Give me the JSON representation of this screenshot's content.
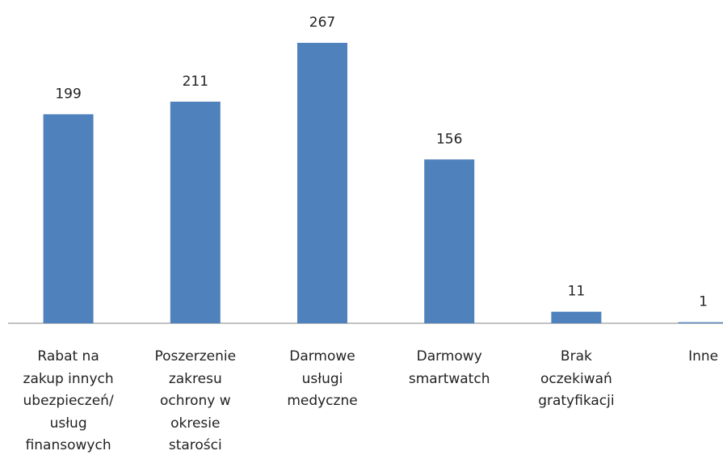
{
  "chart_data": {
    "type": "bar",
    "categories": [
      "Rabat na\nzakup innych\nubezpieczeń/\nusług\nfinansowych",
      "Poszerzenie\nzakresu\nochrony w\nokresie\nstarości",
      "Darmowe\nusługi\nmedyczne",
      "Darmowy\nsmartwatch",
      "Brak\noczekiwań\ngratyfikacji",
      "Inne"
    ],
    "values": [
      199,
      211,
      267,
      156,
      11,
      1
    ],
    "color": "#4f81bd"
  }
}
